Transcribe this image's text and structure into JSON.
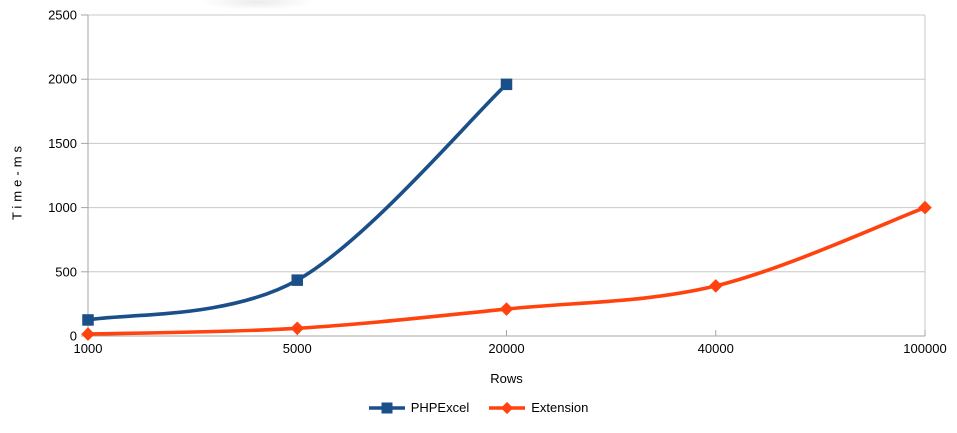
{
  "chart_data": {
    "type": "line",
    "title": "",
    "xlabel": "Rows",
    "ylabel": "Time-ms",
    "categories": [
      "1000",
      "5000",
      "20000",
      "40000",
      "100000"
    ],
    "y_ticks": [
      0,
      500,
      1000,
      1500,
      2000,
      2500
    ],
    "ylim": [
      0,
      2500
    ],
    "grid": "horizontal",
    "legend_position": "bottom",
    "series": [
      {
        "name": "PHPExcel",
        "color": "#1a4f8a",
        "marker": "square",
        "values": [
          125,
          435,
          1960,
          null,
          null
        ]
      },
      {
        "name": "Extension",
        "color": "#ff420e",
        "marker": "diamond",
        "values": [
          15,
          60,
          210,
          390,
          1000
        ]
      }
    ],
    "colors": {
      "grid": "#c8c8c8",
      "axis": "#a6a6a6",
      "text": "#000000",
      "background": "#ffffff"
    }
  }
}
